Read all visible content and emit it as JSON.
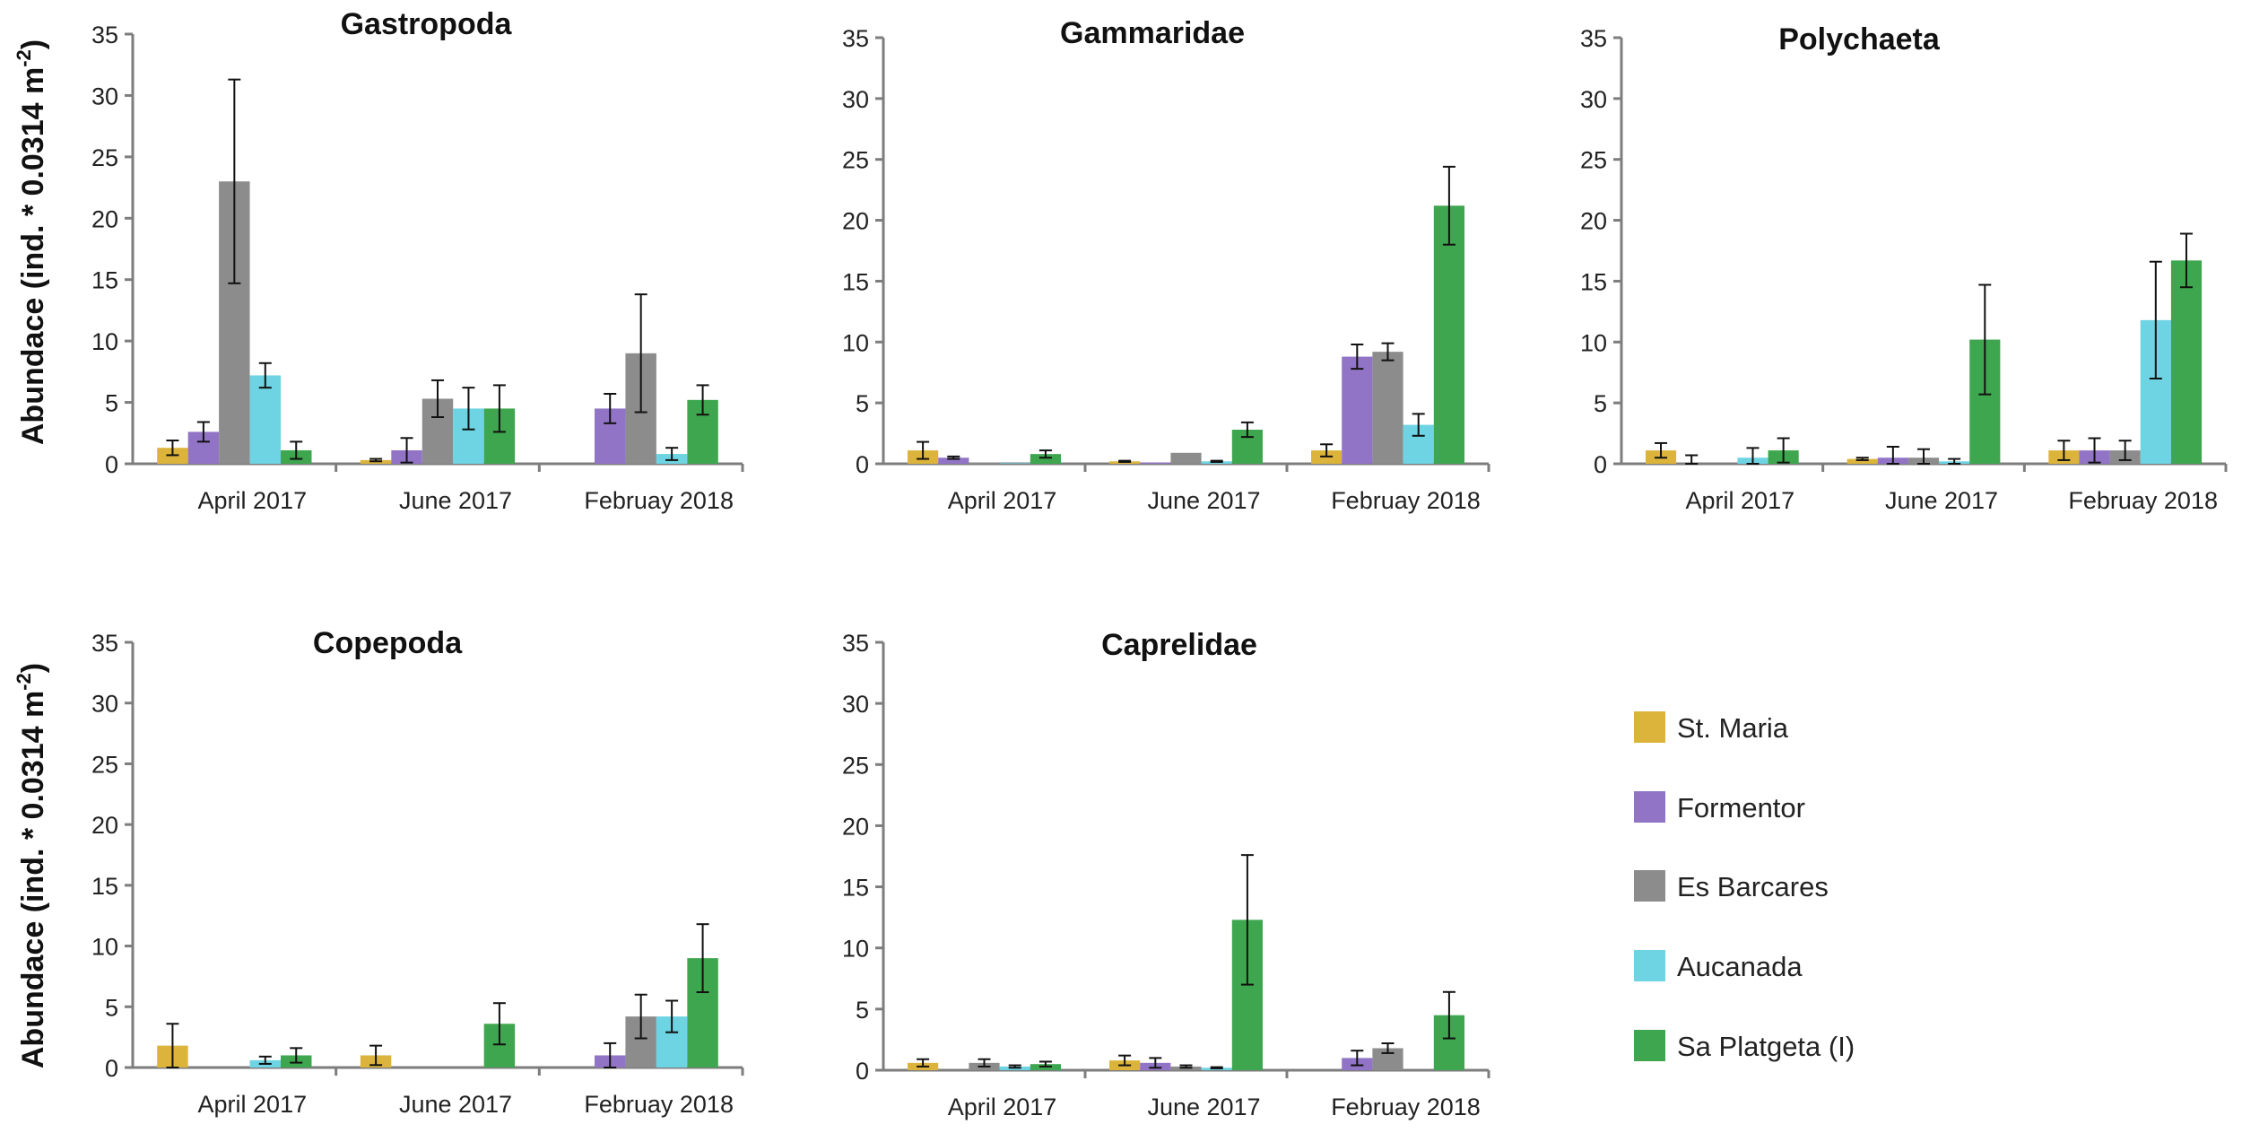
{
  "figure": {
    "ylabel_main": "Abundace (ind. * 0.0314 m",
    "ylabel_exp": "-2",
    "ylabel_close": ")"
  },
  "colors": {
    "St. Maria": "#dcb43c",
    "Formentor": "#9274c6",
    "Es Barcares": "#8c8c8c",
    "Aucanada": "#6ed3e2",
    "Sa Platgeta (I)": "#3ea64e",
    "axis": "#7d7d7d",
    "error": "#111111"
  },
  "legend": [
    "St. Maria",
    "Formentor",
    "Es Barcares",
    "Aucanada",
    "Sa Platgeta (I)"
  ],
  "chart_data": [
    {
      "type": "bar",
      "title": "Gastropoda",
      "categories": [
        "April 2017",
        "June 2017",
        "Februay 2018"
      ],
      "ylim": [
        0,
        35
      ],
      "yticks": [
        0,
        5,
        10,
        15,
        20,
        25,
        30,
        35
      ],
      "series": [
        {
          "name": "St. Maria",
          "values": [
            1.3,
            0.3,
            0
          ],
          "errors": [
            0.6,
            0.1,
            0
          ]
        },
        {
          "name": "Formentor",
          "values": [
            2.6,
            1.1,
            4.5
          ],
          "errors": [
            0.8,
            1.0,
            1.2
          ]
        },
        {
          "name": "Es Barcares",
          "values": [
            23.0,
            5.3,
            9.0
          ],
          "errors": [
            8.3,
            1.5,
            4.8
          ]
        },
        {
          "name": "Aucanada",
          "values": [
            7.2,
            4.5,
            0.8
          ],
          "errors": [
            1.0,
            1.7,
            0.5
          ]
        },
        {
          "name": "Sa Platgeta (I)",
          "values": [
            1.1,
            4.5,
            5.2
          ],
          "errors": [
            0.7,
            1.9,
            1.2
          ]
        }
      ]
    },
    {
      "type": "bar",
      "title": "Gammaridae",
      "categories": [
        "April 2017",
        "June 2017",
        "Februay 2018"
      ],
      "ylim": [
        0,
        35
      ],
      "yticks": [
        0,
        5,
        10,
        15,
        20,
        25,
        30,
        35
      ],
      "series": [
        {
          "name": "St. Maria",
          "values": [
            1.1,
            0.2,
            1.1
          ],
          "errors": [
            0.7,
            0.05,
            0.5
          ]
        },
        {
          "name": "Formentor",
          "values": [
            0.5,
            0.1,
            8.8
          ],
          "errors": [
            0.1,
            0,
            1.0
          ]
        },
        {
          "name": "Es Barcares",
          "values": [
            0.1,
            0.9,
            9.2
          ],
          "errors": [
            0,
            0,
            0.7
          ]
        },
        {
          "name": "Aucanada",
          "values": [
            0.05,
            0.2,
            3.2
          ],
          "errors": [
            0,
            0.05,
            0.9
          ]
        },
        {
          "name": "Sa Platgeta (I)",
          "values": [
            0.8,
            2.8,
            21.2
          ],
          "errors": [
            0.3,
            0.6,
            3.2
          ]
        }
      ]
    },
    {
      "type": "bar",
      "title": "Polychaeta",
      "categories": [
        "April 2017",
        "June 2017",
        "Februay 2018"
      ],
      "ylim": [
        0,
        35
      ],
      "yticks": [
        0,
        5,
        10,
        15,
        20,
        25,
        30,
        35
      ],
      "series": [
        {
          "name": "St. Maria",
          "values": [
            1.1,
            0.4,
            1.1
          ],
          "errors": [
            0.6,
            0.1,
            0.8
          ]
        },
        {
          "name": "Formentor",
          "values": [
            0,
            0.5,
            1.1
          ],
          "errors": [
            0.7,
            0.9,
            1.0
          ]
        },
        {
          "name": "Es Barcares",
          "values": [
            0,
            0.5,
            1.1
          ],
          "errors": [
            0,
            0.7,
            0.8
          ]
        },
        {
          "name": "Aucanada",
          "values": [
            0.5,
            0.2,
            11.8
          ],
          "errors": [
            0.8,
            0.2,
            4.8
          ]
        },
        {
          "name": "Sa Platgeta (I)",
          "values": [
            1.1,
            10.2,
            16.7
          ],
          "errors": [
            1.0,
            4.5,
            2.2
          ]
        }
      ]
    },
    {
      "type": "bar",
      "title": "Copepoda",
      "categories": [
        "April 2017",
        "June 2017",
        "Februay 2018"
      ],
      "ylim": [
        0,
        35
      ],
      "yticks": [
        0,
        5,
        10,
        15,
        20,
        25,
        30,
        35
      ],
      "series": [
        {
          "name": "St. Maria",
          "values": [
            1.8,
            1.0,
            0
          ],
          "errors": [
            1.8,
            0.8,
            0
          ]
        },
        {
          "name": "Formentor",
          "values": [
            0,
            0,
            1.0
          ],
          "errors": [
            0,
            0,
            1.0
          ]
        },
        {
          "name": "Es Barcares",
          "values": [
            0,
            0,
            4.2
          ],
          "errors": [
            0,
            0,
            1.8
          ]
        },
        {
          "name": "Aucanada",
          "values": [
            0.6,
            0,
            4.2
          ],
          "errors": [
            0.3,
            0,
            1.3
          ]
        },
        {
          "name": "Sa Platgeta (I)",
          "values": [
            1.0,
            3.6,
            9.0
          ],
          "errors": [
            0.6,
            1.7,
            2.8
          ]
        }
      ]
    },
    {
      "type": "bar",
      "title": "Caprelidae",
      "categories": [
        "April 2017",
        "June 2017",
        "Februay 2018"
      ],
      "ylim": [
        0,
        35
      ],
      "yticks": [
        0,
        5,
        10,
        15,
        20,
        25,
        30,
        35
      ],
      "series": [
        {
          "name": "St. Maria",
          "values": [
            0.6,
            0.8,
            0
          ],
          "errors": [
            0.3,
            0.4,
            0
          ]
        },
        {
          "name": "Formentor",
          "values": [
            0,
            0.6,
            1.0
          ],
          "errors": [
            0,
            0.4,
            0.6
          ]
        },
        {
          "name": "Es Barcares",
          "values": [
            0.6,
            0.3,
            1.8
          ],
          "errors": [
            0.3,
            0.1,
            0.4
          ]
        },
        {
          "name": "Aucanada",
          "values": [
            0.3,
            0.2,
            0
          ],
          "errors": [
            0.1,
            0.05,
            0
          ]
        },
        {
          "name": "Sa Platgeta (I)",
          "values": [
            0.5,
            12.3,
            4.5
          ],
          "errors": [
            0.2,
            5.3,
            1.9
          ]
        }
      ]
    }
  ]
}
